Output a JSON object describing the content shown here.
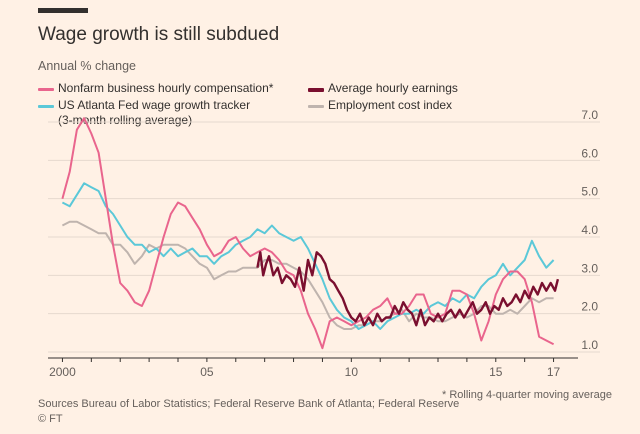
{
  "title": "Wage growth is still subdued",
  "subtitle": "Annual % change",
  "footnote": "* Rolling 4-quarter moving average",
  "sources": "Sources  Bureau of Labor Statistics; Federal Reserve Bank of Atlanta; Federal Reserve",
  "credit": "© FT",
  "colors": {
    "background": "#fff1e5",
    "nonfarm": "#e9658d",
    "earnings": "#7a0f2f",
    "atlanta": "#5bc8d8",
    "eci": "#bfb4ae",
    "grid": "#e6d9ce",
    "axis": "#33302e"
  },
  "legend": {
    "nonfarm": "Nonfarm business hourly compensation*",
    "earnings": "Average hourly earnings",
    "atlanta_line1": "US Atlanta Fed wage growth tracker",
    "atlanta_line2": "(3-month rolling average)",
    "eci": "Employment cost index"
  },
  "chart_data": {
    "type": "line",
    "title": "Wage growth is still subdued",
    "ylabel": "Annual % change",
    "xlim": [
      1999.5,
      2017.5
    ],
    "ylim": [
      1.0,
      7.0
    ],
    "yticks": [
      1.0,
      2.0,
      3.0,
      4.0,
      5.0,
      6.0,
      7.0
    ],
    "ytick_labels": [
      "1.0",
      "2.0",
      "3.0",
      "4.0",
      "5.0",
      "6.0",
      "7.0"
    ],
    "xticks": [
      2000,
      2005,
      2010,
      2015,
      2017
    ],
    "xtick_labels": [
      "2000",
      "05",
      "10",
      "15",
      "17"
    ],
    "grid": "horizontal",
    "legend_position": "top",
    "series": [
      {
        "name": "Nonfarm business hourly compensation*",
        "color_key": "nonfarm",
        "x": [
          2000.0,
          2000.25,
          2000.5,
          2000.75,
          2001.0,
          2001.25,
          2001.5,
          2001.75,
          2002.0,
          2002.25,
          2002.5,
          2002.75,
          2003.0,
          2003.25,
          2003.5,
          2003.75,
          2004.0,
          2004.25,
          2004.5,
          2004.75,
          2005.0,
          2005.25,
          2005.5,
          2005.75,
          2006.0,
          2006.25,
          2006.5,
          2006.75,
          2007.0,
          2007.25,
          2007.5,
          2007.75,
          2008.0,
          2008.25,
          2008.5,
          2008.75,
          2009.0,
          2009.25,
          2009.5,
          2009.75,
          2010.0,
          2010.25,
          2010.5,
          2010.75,
          2011.0,
          2011.25,
          2011.5,
          2011.75,
          2012.0,
          2012.25,
          2012.5,
          2012.75,
          2013.0,
          2013.25,
          2013.5,
          2013.75,
          2014.0,
          2014.25,
          2014.5,
          2014.75,
          2015.0,
          2015.25,
          2015.5,
          2015.75,
          2016.0,
          2016.25,
          2016.5,
          2016.75,
          2017.0
        ],
        "values": [
          5.0,
          5.7,
          6.8,
          7.1,
          6.7,
          6.2,
          5.0,
          3.8,
          2.8,
          2.6,
          2.3,
          2.2,
          2.6,
          3.3,
          4.0,
          4.6,
          4.9,
          4.8,
          4.5,
          4.2,
          3.8,
          3.5,
          3.6,
          3.9,
          4.0,
          3.7,
          3.5,
          3.6,
          3.7,
          3.6,
          3.4,
          3.1,
          3.0,
          2.6,
          2.0,
          1.6,
          1.1,
          1.8,
          1.9,
          1.8,
          1.7,
          1.8,
          1.9,
          2.1,
          2.2,
          2.4,
          2.0,
          2.0,
          2.2,
          2.5,
          2.5,
          2.0,
          1.9,
          2.0,
          2.6,
          2.6,
          2.5,
          2.0,
          1.3,
          1.8,
          2.5,
          2.9,
          3.1,
          3.1,
          2.9,
          2.3,
          1.4,
          1.3,
          1.2
        ]
      },
      {
        "name": "Average hourly earnings",
        "color_key": "earnings",
        "x": [
          2006.75,
          2006.85,
          2006.95,
          2007.05,
          2007.15,
          2007.3,
          2007.45,
          2007.6,
          2007.75,
          2007.9,
          2008.05,
          2008.2,
          2008.35,
          2008.5,
          2008.65,
          2008.8,
          2008.95,
          2009.1,
          2009.25,
          2009.4,
          2009.55,
          2009.7,
          2009.85,
          2010.0,
          2010.15,
          2010.3,
          2010.45,
          2010.6,
          2010.75,
          2010.9,
          2011.05,
          2011.2,
          2011.35,
          2011.5,
          2011.65,
          2011.8,
          2011.95,
          2012.1,
          2012.25,
          2012.4,
          2012.55,
          2012.7,
          2012.85,
          2013.0,
          2013.15,
          2013.3,
          2013.45,
          2013.6,
          2013.75,
          2013.9,
          2014.05,
          2014.2,
          2014.35,
          2014.5,
          2014.65,
          2014.8,
          2014.95,
          2015.1,
          2015.25,
          2015.4,
          2015.55,
          2015.7,
          2015.85,
          2016.0,
          2016.15,
          2016.3,
          2016.45,
          2016.6,
          2016.75,
          2016.9,
          2017.05,
          2017.15
        ],
        "values": [
          3.2,
          3.6,
          3.0,
          3.3,
          3.5,
          3.0,
          3.2,
          2.8,
          3.0,
          2.9,
          2.7,
          3.2,
          2.6,
          3.4,
          3.0,
          3.6,
          3.5,
          3.3,
          2.9,
          2.8,
          2.6,
          2.4,
          2.1,
          1.9,
          1.8,
          2.0,
          1.7,
          1.9,
          1.7,
          2.0,
          1.8,
          1.9,
          1.9,
          2.2,
          2.0,
          2.3,
          2.1,
          2.0,
          1.7,
          2.1,
          1.7,
          1.9,
          1.8,
          2.0,
          1.8,
          2.0,
          2.1,
          1.9,
          2.1,
          1.9,
          2.1,
          2.3,
          2.0,
          2.1,
          2.3,
          2.0,
          2.2,
          2.1,
          2.4,
          2.2,
          2.3,
          2.5,
          2.3,
          2.6,
          2.4,
          2.7,
          2.5,
          2.8,
          2.6,
          2.8,
          2.6,
          2.9
        ]
      },
      {
        "name": "US Atlanta Fed wage growth tracker (3-month rolling average)",
        "color_key": "atlanta",
        "x": [
          2000.0,
          2000.25,
          2000.5,
          2000.75,
          2001.0,
          2001.25,
          2001.5,
          2001.75,
          2002.0,
          2002.25,
          2002.5,
          2002.75,
          2003.0,
          2003.25,
          2003.5,
          2003.75,
          2004.0,
          2004.25,
          2004.5,
          2004.75,
          2005.0,
          2005.25,
          2005.5,
          2005.75,
          2006.0,
          2006.25,
          2006.5,
          2006.75,
          2007.0,
          2007.25,
          2007.5,
          2007.75,
          2008.0,
          2008.25,
          2008.5,
          2008.75,
          2009.0,
          2009.25,
          2009.5,
          2009.75,
          2010.0,
          2010.25,
          2010.5,
          2010.75,
          2011.0,
          2011.25,
          2011.5,
          2011.75,
          2012.0,
          2012.25,
          2012.5,
          2012.75,
          2013.0,
          2013.25,
          2013.5,
          2013.75,
          2014.0,
          2014.25,
          2014.5,
          2014.75,
          2015.0,
          2015.25,
          2015.5,
          2015.75,
          2016.0,
          2016.25,
          2016.5,
          2016.75,
          2017.0
        ],
        "values": [
          4.9,
          4.8,
          5.1,
          5.4,
          5.3,
          5.2,
          4.8,
          4.6,
          4.3,
          4.0,
          3.8,
          3.8,
          3.6,
          3.7,
          3.5,
          3.7,
          3.5,
          3.6,
          3.7,
          3.5,
          3.5,
          3.3,
          3.5,
          3.6,
          3.8,
          3.9,
          4.0,
          4.2,
          4.1,
          4.3,
          4.1,
          4.0,
          3.9,
          4.0,
          3.7,
          3.3,
          2.9,
          2.4,
          2.1,
          1.9,
          1.8,
          1.6,
          1.7,
          1.8,
          1.6,
          1.8,
          1.9,
          2.0,
          2.0,
          2.1,
          2.0,
          2.2,
          2.3,
          2.2,
          2.4,
          2.3,
          2.5,
          2.4,
          2.7,
          2.9,
          3.0,
          3.3,
          3.0,
          3.2,
          3.4,
          3.9,
          3.5,
          3.2,
          3.4
        ]
      },
      {
        "name": "Employment cost index",
        "color_key": "eci",
        "x": [
          2000.0,
          2000.25,
          2000.5,
          2000.75,
          2001.0,
          2001.25,
          2001.5,
          2001.75,
          2002.0,
          2002.25,
          2002.5,
          2002.75,
          2003.0,
          2003.25,
          2003.5,
          2003.75,
          2004.0,
          2004.25,
          2004.5,
          2004.75,
          2005.0,
          2005.25,
          2005.5,
          2005.75,
          2006.0,
          2006.25,
          2006.5,
          2006.75,
          2007.0,
          2007.25,
          2007.5,
          2007.75,
          2008.0,
          2008.25,
          2008.5,
          2008.75,
          2009.0,
          2009.25,
          2009.5,
          2009.75,
          2010.0,
          2010.25,
          2010.5,
          2010.75,
          2011.0,
          2011.25,
          2011.5,
          2011.75,
          2012.0,
          2012.25,
          2012.5,
          2012.75,
          2013.0,
          2013.25,
          2013.5,
          2013.75,
          2014.0,
          2014.25,
          2014.5,
          2014.75,
          2015.0,
          2015.25,
          2015.5,
          2015.75,
          2016.0,
          2016.25,
          2016.5,
          2016.75,
          2017.0
        ],
        "values": [
          4.3,
          4.4,
          4.4,
          4.3,
          4.2,
          4.1,
          4.1,
          3.8,
          3.8,
          3.6,
          3.3,
          3.5,
          3.8,
          3.7,
          3.8,
          3.8,
          3.8,
          3.7,
          3.5,
          3.3,
          3.2,
          2.9,
          3.0,
          3.1,
          3.1,
          3.2,
          3.2,
          3.2,
          3.4,
          3.4,
          3.3,
          3.3,
          3.2,
          3.1,
          2.9,
          2.6,
          2.3,
          1.9,
          1.7,
          1.6,
          1.6,
          1.7,
          1.7,
          1.8,
          1.8,
          1.9,
          2.0,
          2.1,
          1.8,
          2.0,
          1.9,
          1.9,
          1.8,
          1.8,
          1.9,
          2.0,
          1.9,
          2.0,
          2.2,
          2.2,
          2.0,
          2.0,
          2.1,
          2.0,
          2.2,
          2.4,
          2.3,
          2.4,
          2.4
        ]
      }
    ]
  }
}
